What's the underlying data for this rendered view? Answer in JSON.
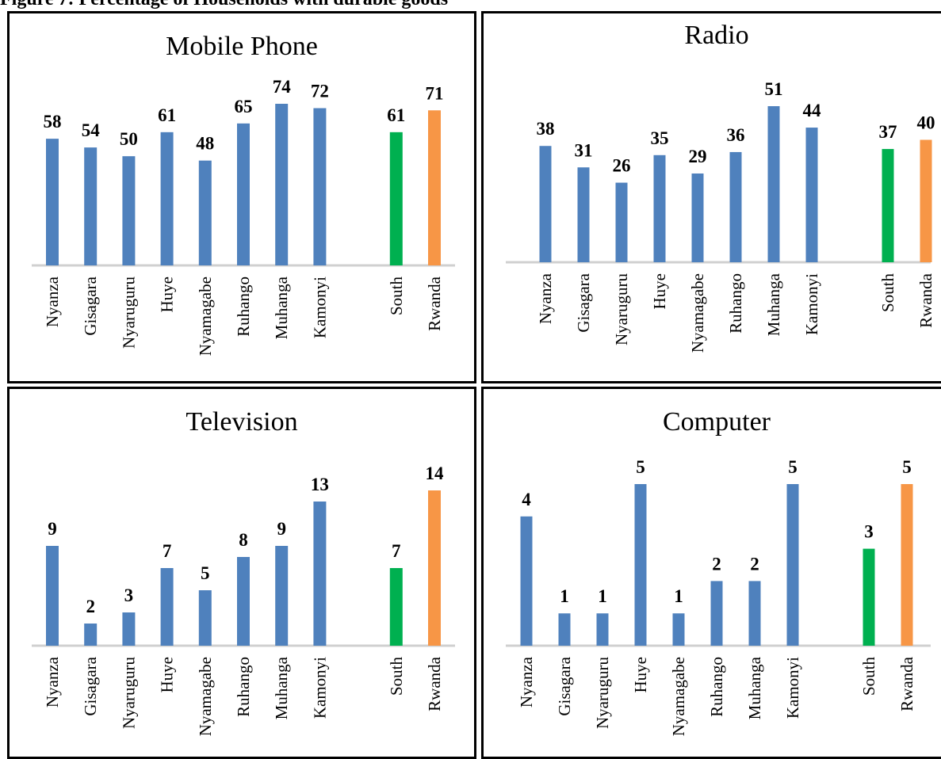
{
  "heading": "Figure 7: Percentage of Households with durable goods",
  "chart_data": [
    {
      "type": "bar",
      "title": "Mobile Phone",
      "categories": [
        "Nyanza",
        "Gisagara",
        "Nyaruguru",
        "Huye",
        "Nyamagabe",
        "Ruhango",
        "Muhanga",
        "Kamonyi",
        "South",
        "Rwanda"
      ],
      "values": [
        58,
        54,
        50,
        61,
        48,
        65,
        74,
        72,
        61,
        71
      ],
      "ylim": [
        0,
        74
      ]
    },
    {
      "type": "bar",
      "title": "Radio",
      "categories": [
        "Nyanza",
        "Gisagara",
        "Nyaruguru",
        "Huye",
        "Nyamagabe",
        "Ruhango",
        "Muhanga",
        "Kamonyi",
        "South",
        "Rwanda"
      ],
      "values": [
        38,
        31,
        26,
        35,
        29,
        36,
        51,
        44,
        37,
        40
      ],
      "ylim": [
        0,
        51
      ]
    },
    {
      "type": "bar",
      "title": "Television",
      "categories": [
        "Nyanza",
        "Gisagara",
        "Nyaruguru",
        "Huye",
        "Nyamagabe",
        "Ruhango",
        "Muhanga",
        "Kamonyi",
        "South",
        "Rwanda"
      ],
      "values": [
        9,
        2,
        3,
        7,
        5,
        8,
        9,
        13,
        7,
        14
      ],
      "ylim": [
        0,
        14
      ]
    },
    {
      "type": "bar",
      "title": "Computer",
      "categories": [
        "Nyanza",
        "Gisagara",
        "Nyaruguru",
        "Huye",
        "Nyamagabe",
        "Ruhango",
        "Muhanga",
        "Kamonyi",
        "South",
        "Rwanda"
      ],
      "values": [
        4,
        1,
        1,
        5,
        1,
        2,
        2,
        5,
        3,
        5
      ],
      "ylim": [
        0,
        5
      ]
    }
  ],
  "colors": {
    "district": "#4f81bd",
    "south": "#00b050",
    "rwanda": "#f79646",
    "axis": "#d0d0d0"
  }
}
